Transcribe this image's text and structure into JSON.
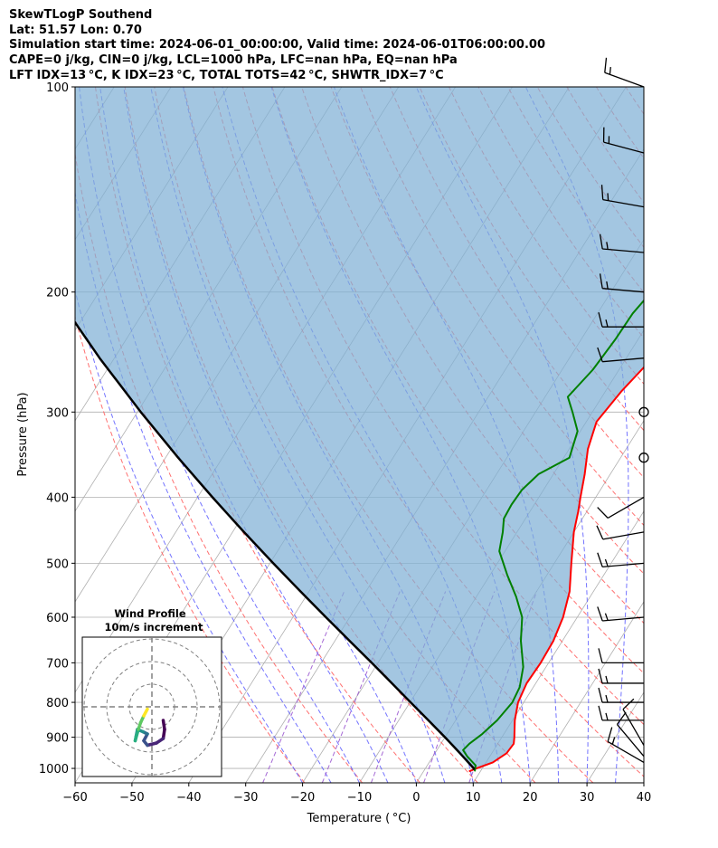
{
  "header": {
    "line1": "SkewTLogP Southend",
    "line2": "Lat: 51.57   Lon: 0.70",
    "line3": "Simulation start time: 2024-06-01_00:00:00, Valid time: 2024-06-01T06:00:00.00",
    "line4": "CAPE=0 j/kg, CIN=0 j/kg, LCL=1000 hPa, LFC=nan hPa, EQ=nan hPa",
    "line5": "LFT IDX=13 °C, K IDX=23 °C, TOTAL TOTS=42 °C, SHWTR_IDX=7 °C"
  },
  "chart_data": {
    "type": "line",
    "subtype": "skew-T log-p sounding",
    "xlabel": "Temperature ( °C)",
    "ylabel": "Pressure (hPa)",
    "xlim": [
      -60,
      40
    ],
    "ylim": [
      1050,
      100
    ],
    "y_scale": "log",
    "x_ticks": [
      "−60",
      "−50",
      "−40",
      "−30",
      "−20",
      "−10",
      "0",
      "10",
      "20",
      "30",
      "40"
    ],
    "x_tick_values": [
      -60,
      -50,
      -40,
      -30,
      -20,
      -10,
      0,
      10,
      20,
      30,
      40
    ],
    "y_ticks": [
      "1000",
      "900",
      "800",
      "700",
      "600",
      "500",
      "400",
      "300",
      "200",
      "100"
    ],
    "y_tick_values": [
      1000,
      900,
      800,
      700,
      600,
      500,
      400,
      300,
      200,
      100
    ],
    "grid": true,
    "colors": {
      "temperature": "#ff0000",
      "dewpoint": "#008000",
      "parcel": "#000000",
      "cape_fill": "#7fb0d6",
      "dry_adiabats": "#ff6060",
      "moist_adiabats": "#5a5aff",
      "mixing_ratio": "#9b59d0",
      "isotherms": "#b0b0b0"
    },
    "series": [
      {
        "role": "temperature",
        "points": [
          [
            1010,
            8.0
          ],
          [
            1000,
            9.0
          ],
          [
            980,
            11.2
          ],
          [
            950,
            12.6
          ],
          [
            920,
            12.8
          ],
          [
            900,
            12.2
          ],
          [
            850,
            10.4
          ],
          [
            800,
            9.0
          ],
          [
            750,
            8.4
          ],
          [
            700,
            8.6
          ],
          [
            650,
            8.4
          ],
          [
            600,
            7.5
          ],
          [
            550,
            5.8
          ],
          [
            500,
            3.0
          ],
          [
            450,
            0.0
          ],
          [
            420,
            -1.5
          ],
          [
            400,
            -2.7
          ],
          [
            370,
            -4.5
          ],
          [
            340,
            -6.7
          ],
          [
            310,
            -8.2
          ],
          [
            280,
            -7.2
          ],
          [
            250,
            -5.4
          ],
          [
            230,
            -4.1
          ],
          [
            210,
            -2.1
          ],
          [
            195,
            1.0
          ],
          [
            185,
            3.0
          ],
          [
            175,
            4.5
          ],
          [
            165,
            5.2
          ],
          [
            155,
            5.8
          ],
          [
            145,
            6.8
          ],
          [
            135,
            7.5
          ],
          [
            125,
            8.5
          ],
          [
            115,
            9.8
          ],
          [
            100,
            12.0
          ]
        ]
      },
      {
        "role": "dewpoint",
        "points": [
          [
            1010,
            9.0
          ],
          [
            990,
            8.5
          ],
          [
            960,
            6.0
          ],
          [
            940,
            4.6
          ],
          [
            920,
            5.0
          ],
          [
            890,
            6.2
          ],
          [
            850,
            7.3
          ],
          [
            800,
            8.0
          ],
          [
            760,
            7.6
          ],
          [
            710,
            6.0
          ],
          [
            650,
            2.7
          ],
          [
            600,
            0.3
          ],
          [
            560,
            -3.0
          ],
          [
            520,
            -7.0
          ],
          [
            480,
            -11.0
          ],
          [
            450,
            -12.5
          ],
          [
            430,
            -13.8
          ],
          [
            410,
            -14.0
          ],
          [
            390,
            -13.8
          ],
          [
            370,
            -12.6
          ],
          [
            350,
            -9.0
          ],
          [
            320,
            -10.5
          ],
          [
            300,
            -13.5
          ],
          [
            285,
            -16.0
          ],
          [
            260,
            -14.6
          ],
          [
            235,
            -14.0
          ],
          [
            215,
            -13.8
          ],
          [
            195,
            -12.6
          ],
          [
            180,
            -12.2
          ],
          [
            170,
            -13.2
          ],
          [
            160,
            -12.6
          ],
          [
            145,
            -10.3
          ],
          [
            130,
            -7.2
          ],
          [
            115,
            -4.4
          ],
          [
            100,
            -1.2
          ]
        ]
      },
      {
        "role": "parcel",
        "points": [
          [
            1005,
            8.7
          ],
          [
            1000,
            8.5
          ],
          [
            950,
            4.4
          ],
          [
            900,
            0.0
          ],
          [
            850,
            -4.8
          ],
          [
            800,
            -9.9
          ],
          [
            750,
            -15.3
          ],
          [
            700,
            -21.1
          ],
          [
            650,
            -27.4
          ],
          [
            600,
            -34.2
          ],
          [
            550,
            -41.5
          ],
          [
            500,
            -49.4
          ],
          [
            450,
            -58.0
          ],
          [
            400,
            -67.4
          ],
          [
            350,
            -77.8
          ],
          [
            300,
            -89.4
          ],
          [
            250,
            -102.6
          ],
          [
            200,
            -117.9
          ],
          [
            150,
            -136.3
          ],
          [
            120,
            -149.5
          ],
          [
            100,
            -159.7
          ]
        ]
      }
    ],
    "wind_barbs": [
      {
        "pressure": 980,
        "speed_kt": 15,
        "direction_deg": 300
      },
      {
        "pressure": 960,
        "speed_kt": 10,
        "direction_deg": 320
      },
      {
        "pressure": 925,
        "speed_kt": 10,
        "direction_deg": 330
      },
      {
        "pressure": 850,
        "speed_kt": 15,
        "direction_deg": 270
      },
      {
        "pressure": 800,
        "speed_kt": 15,
        "direction_deg": 270
      },
      {
        "pressure": 750,
        "speed_kt": 15,
        "direction_deg": 270
      },
      {
        "pressure": 700,
        "speed_kt": 10,
        "direction_deg": 270
      },
      {
        "pressure": 600,
        "speed_kt": 15,
        "direction_deg": 265
      },
      {
        "pressure": 500,
        "speed_kt": 15,
        "direction_deg": 265
      },
      {
        "pressure": 450,
        "speed_kt": 10,
        "direction_deg": 260
      },
      {
        "pressure": 400,
        "speed_kt": 10,
        "direction_deg": 240
      },
      {
        "pressure": 350,
        "speed_kt": 0,
        "direction_deg": 0
      },
      {
        "pressure": 300,
        "speed_kt": 0,
        "direction_deg": 0
      },
      {
        "pressure": 250,
        "speed_kt": 10,
        "direction_deg": 265
      },
      {
        "pressure": 225,
        "speed_kt": 15,
        "direction_deg": 270
      },
      {
        "pressure": 200,
        "speed_kt": 15,
        "direction_deg": 275
      },
      {
        "pressure": 175,
        "speed_kt": 15,
        "direction_deg": 275
      },
      {
        "pressure": 150,
        "speed_kt": 15,
        "direction_deg": 280
      },
      {
        "pressure": 125,
        "speed_kt": 15,
        "direction_deg": 285
      },
      {
        "pressure": 100,
        "speed_kt": 15,
        "direction_deg": 290
      }
    ],
    "inset": {
      "title": "Wind Profile",
      "subtitle": "10m/s increment",
      "hodograph": [
        [
          2.5,
          -3
        ],
        [
          2.8,
          -5
        ],
        [
          2.5,
          -7
        ],
        [
          1.0,
          -8.0
        ],
        [
          -1.0,
          -8.5
        ],
        [
          -1.8,
          -7.5
        ],
        [
          -1.0,
          -6.0
        ],
        [
          -2.0,
          -5.5
        ],
        [
          -3.2,
          -5.0
        ],
        [
          -3.5,
          -6.5
        ],
        [
          -3.7,
          -7.5
        ],
        [
          -3.0,
          -5.0
        ],
        [
          -2.5,
          -3.5
        ],
        [
          -1.8,
          -2.0
        ],
        [
          -1.0,
          -0.5
        ]
      ],
      "hodograph_colors": [
        "#440154",
        "#482677",
        "#3b528b",
        "#2c728e",
        "#21918c",
        "#28ae80",
        "#5ec962",
        "#fde725"
      ]
    }
  }
}
